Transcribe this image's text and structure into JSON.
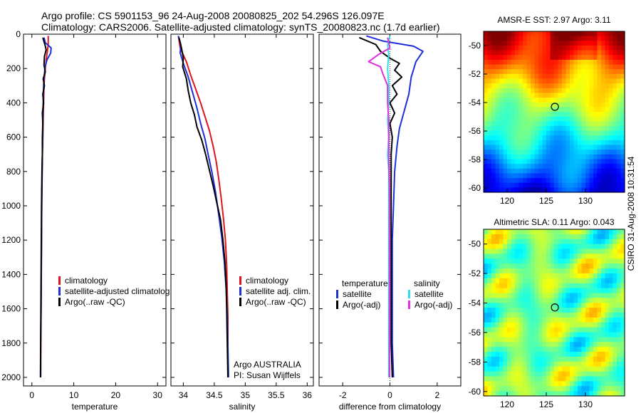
{
  "header": {
    "line1": "Argo profile: CS 5901153_96 24-Aug-2008 20080825_202 54.296S 126.097E",
    "line2": "Climatology: CARS2006. Satellite-adjusted climatology: synTS_20080823.nc (1.7d earlier)"
  },
  "side_label": "CSIRO 31-Aug-2008 10:31:54",
  "credit": {
    "line1": "Argo AUSTRALIA",
    "line2": "PI: Susan Wijffels"
  },
  "colors": {
    "red": "#e0141e",
    "blue": "#1f2fd8",
    "black": "#000000",
    "cyan": "#2ee0e8",
    "magenta": "#e030e0"
  },
  "chart_data": [
    {
      "type": "line",
      "id": "temperature",
      "xlabel": "temperature",
      "xlim": [
        -2,
        32
      ],
      "xticks": [
        0,
        10,
        20,
        30
      ],
      "ylim": [
        2050,
        0
      ],
      "yticks": [
        0,
        200,
        400,
        600,
        800,
        1000,
        1200,
        1400,
        1600,
        1800,
        2000
      ],
      "legend": [
        "climatology",
        "satellite-adjusted climatolog",
        "Argo(..raw -QC)"
      ],
      "series": [
        {
          "name": "climatology",
          "color": "red",
          "points": [
            [
              3.9,
              10
            ],
            [
              3.9,
              60
            ],
            [
              3.7,
              100
            ],
            [
              3.4,
              150
            ],
            [
              3.2,
              200
            ],
            [
              3.0,
              260
            ],
            [
              2.9,
              300
            ],
            [
              2.8,
              400
            ],
            [
              2.7,
              500
            ],
            [
              2.6,
              600
            ],
            [
              2.5,
              700
            ],
            [
              2.45,
              800
            ],
            [
              2.4,
              900
            ],
            [
              2.35,
              1000
            ],
            [
              2.3,
              1200
            ],
            [
              2.25,
              1400
            ],
            [
              2.2,
              1600
            ],
            [
              2.15,
              1800
            ],
            [
              2.1,
              1990
            ]
          ]
        },
        {
          "name": "satellite-adjusted climatolog",
          "color": "blue",
          "points": [
            [
              2.9,
              20
            ],
            [
              3.2,
              50
            ],
            [
              4.6,
              80
            ],
            [
              4.5,
              110
            ],
            [
              3.6,
              150
            ],
            [
              3.1,
              200
            ],
            [
              2.9,
              260
            ],
            [
              2.8,
              300
            ],
            [
              2.7,
              400
            ],
            [
              2.6,
              500
            ],
            [
              2.6,
              600
            ],
            [
              2.5,
              700
            ],
            [
              2.45,
              800
            ],
            [
              2.4,
              900
            ],
            [
              2.35,
              1000
            ],
            [
              2.3,
              1200
            ],
            [
              2.25,
              1400
            ],
            [
              2.2,
              1600
            ],
            [
              2.1,
              1800
            ],
            [
              2.1,
              2000
            ]
          ]
        },
        {
          "name": "Argo(..raw -QC)",
          "color": "black",
          "points": [
            [
              2.6,
              20
            ],
            [
              3.1,
              60
            ],
            [
              3.4,
              90
            ],
            [
              3.0,
              130
            ],
            [
              2.9,
              180
            ],
            [
              3.2,
              220
            ],
            [
              2.7,
              260
            ],
            [
              3.0,
              300
            ],
            [
              2.6,
              350
            ],
            [
              2.8,
              400
            ],
            [
              2.5,
              460
            ],
            [
              2.6,
              520
            ],
            [
              2.5,
              600
            ],
            [
              2.5,
              700
            ],
            [
              2.4,
              800
            ],
            [
              2.35,
              900
            ],
            [
              2.3,
              1000
            ],
            [
              2.25,
              1200
            ],
            [
              2.2,
              1400
            ],
            [
              2.15,
              1600
            ],
            [
              2.1,
              1800
            ],
            [
              2.05,
              2000
            ]
          ]
        }
      ]
    },
    {
      "type": "line",
      "id": "salinity",
      "xlabel": "salinity",
      "xlim": [
        33.8,
        36.1
      ],
      "xticks": [
        34,
        34.5,
        35,
        35.5,
        36
      ],
      "ylim": [
        2050,
        0
      ],
      "legend": [
        "climatology",
        "satellite adj. clim.",
        "Argo(..raw -QC)"
      ],
      "series": [
        {
          "name": "climatology",
          "color": "red",
          "points": [
            [
              33.92,
              10
            ],
            [
              33.95,
              80
            ],
            [
              34.05,
              160
            ],
            [
              34.12,
              240
            ],
            [
              34.2,
              320
            ],
            [
              34.28,
              400
            ],
            [
              34.35,
              480
            ],
            [
              34.42,
              560
            ],
            [
              34.48,
              650
            ],
            [
              34.53,
              740
            ],
            [
              34.57,
              840
            ],
            [
              34.61,
              950
            ],
            [
              34.65,
              1080
            ],
            [
              34.68,
              1200
            ],
            [
              34.7,
              1350
            ],
            [
              34.71,
              1500
            ],
            [
              34.72,
              1650
            ],
            [
              34.72,
              1800
            ],
            [
              34.72,
              2000
            ]
          ]
        },
        {
          "name": "satellite adj. clim.",
          "color": "blue",
          "points": [
            [
              33.92,
              10
            ],
            [
              33.96,
              60
            ],
            [
              33.95,
              110
            ],
            [
              34.0,
              170
            ],
            [
              34.08,
              250
            ],
            [
              34.15,
              340
            ],
            [
              34.22,
              430
            ],
            [
              34.28,
              520
            ],
            [
              34.35,
              610
            ],
            [
              34.4,
              700
            ],
            [
              34.46,
              800
            ],
            [
              34.52,
              920
            ],
            [
              34.57,
              1050
            ],
            [
              34.62,
              1180
            ],
            [
              34.66,
              1320
            ],
            [
              34.69,
              1480
            ],
            [
              34.71,
              1640
            ],
            [
              34.72,
              1820
            ],
            [
              34.73,
              2000
            ]
          ]
        },
        {
          "name": "Argo(..raw -QC)",
          "color": "black",
          "points": [
            [
              33.93,
              20
            ],
            [
              33.97,
              80
            ],
            [
              34.0,
              140
            ],
            [
              33.99,
              190
            ],
            [
              34.05,
              260
            ],
            [
              34.08,
              330
            ],
            [
              34.12,
              400
            ],
            [
              34.18,
              470
            ],
            [
              34.22,
              540
            ],
            [
              34.3,
              620
            ],
            [
              34.36,
              700
            ],
            [
              34.42,
              790
            ],
            [
              34.48,
              880
            ],
            [
              34.54,
              980
            ],
            [
              34.6,
              1080
            ],
            [
              34.64,
              1200
            ],
            [
              34.67,
              1320
            ],
            [
              34.69,
              1450
            ],
            [
              34.7,
              1600
            ],
            [
              34.71,
              1800
            ],
            [
              34.72,
              2000
            ]
          ]
        }
      ]
    },
    {
      "type": "line",
      "id": "difference",
      "xlabel": "difference from climatology",
      "xlim": [
        -3,
        3
      ],
      "xticks": [
        -2,
        0,
        2
      ],
      "ylim": [
        2050,
        0
      ],
      "legend": [
        {
          "group": "temperature",
          "items": [
            "satellite",
            "Argo(-adj)"
          ]
        },
        {
          "group": "salinity",
          "items": [
            "satellite",
            "Argo(-adj)"
          ]
        }
      ],
      "series": [
        {
          "name": "temperature satellite",
          "color": "blue",
          "points": [
            [
              -1.0,
              10
            ],
            [
              -0.3,
              40
            ],
            [
              1.0,
              70
            ],
            [
              1.4,
              100
            ],
            [
              1.1,
              160
            ],
            [
              0.9,
              250
            ],
            [
              0.8,
              350
            ],
            [
              0.6,
              450
            ],
            [
              0.4,
              550
            ],
            [
              0.3,
              650
            ],
            [
              0.2,
              800
            ],
            [
              0.15,
              1000
            ],
            [
              0.1,
              1200
            ],
            [
              0.1,
              1400
            ],
            [
              0.1,
              1600
            ],
            [
              0.1,
              1800
            ],
            [
              0.15,
              2000
            ]
          ]
        },
        {
          "name": "temperature Argo(-adj)",
          "color": "black",
          "points": [
            [
              -1.3,
              20
            ],
            [
              -0.6,
              60
            ],
            [
              -0.4,
              100
            ],
            [
              0.0,
              140
            ],
            [
              0.4,
              170
            ],
            [
              0.2,
              210
            ],
            [
              0.5,
              250
            ],
            [
              0.1,
              300
            ],
            [
              0.3,
              350
            ],
            [
              0.0,
              400
            ],
            [
              0.2,
              460
            ],
            [
              0.0,
              520
            ],
            [
              0.1,
              600
            ],
            [
              0.05,
              700
            ],
            [
              0.05,
              800
            ],
            [
              0.05,
              1000
            ],
            [
              0.05,
              1200
            ],
            [
              0.05,
              1400
            ],
            [
              0.05,
              1600
            ],
            [
              0.05,
              1800
            ],
            [
              0.1,
              2000
            ]
          ]
        },
        {
          "name": "salinity satellite",
          "color": "cyan",
          "points": [
            [
              0.0,
              10
            ],
            [
              -0.1,
              60
            ],
            [
              -0.05,
              120
            ],
            [
              -0.1,
              200
            ],
            [
              -0.05,
              300
            ],
            [
              -0.05,
              400
            ],
            [
              -0.1,
              500
            ],
            [
              -0.05,
              600
            ],
            [
              -0.1,
              700
            ],
            [
              -0.05,
              800
            ],
            [
              -0.05,
              1000
            ],
            [
              -0.05,
              1200
            ],
            [
              -0.05,
              1400
            ],
            [
              -0.05,
              1600
            ],
            [
              -0.05,
              1800
            ],
            [
              -0.05,
              2000
            ]
          ]
        },
        {
          "name": "salinity Argo(-adj)",
          "color": "magenta",
          "points": [
            [
              -0.1,
              20
            ],
            [
              0.0,
              80
            ],
            [
              -0.5,
              120
            ],
            [
              -0.9,
              160
            ],
            [
              -0.4,
              190
            ],
            [
              -0.3,
              230
            ],
            [
              -0.1,
              300
            ],
            [
              -0.1,
              400
            ],
            [
              -0.05,
              500
            ],
            [
              -0.05,
              700
            ],
            [
              -0.02,
              900
            ],
            [
              -0.02,
              1200
            ],
            [
              -0.02,
              1500
            ],
            [
              -0.02,
              1800
            ],
            [
              -0.02,
              2000
            ]
          ]
        }
      ]
    },
    {
      "type": "heatmap",
      "id": "sst_map",
      "title": "AMSR-E SST: 2.97 Argo: 3.11",
      "xlim": [
        117,
        135
      ],
      "ylim": [
        -60.3,
        -49
      ],
      "xticks": [
        120,
        125,
        130
      ],
      "yticks": [
        -50,
        -52,
        -54,
        -56,
        -58,
        -60
      ],
      "marker": {
        "lon": 126.1,
        "lat": -54.3
      },
      "colorscale": "jet"
    },
    {
      "type": "heatmap",
      "id": "sla_map",
      "title": "Altimetric SLA: 0.11 Argo: 0.043",
      "xlim": [
        117,
        135
      ],
      "ylim": [
        -60.3,
        -49
      ],
      "xticks": [
        120,
        125,
        130
      ],
      "yticks": [
        -50,
        -52,
        -54,
        -56,
        -58,
        -60
      ],
      "marker": {
        "lon": 126.1,
        "lat": -54.3
      },
      "colorscale": "jet"
    }
  ]
}
